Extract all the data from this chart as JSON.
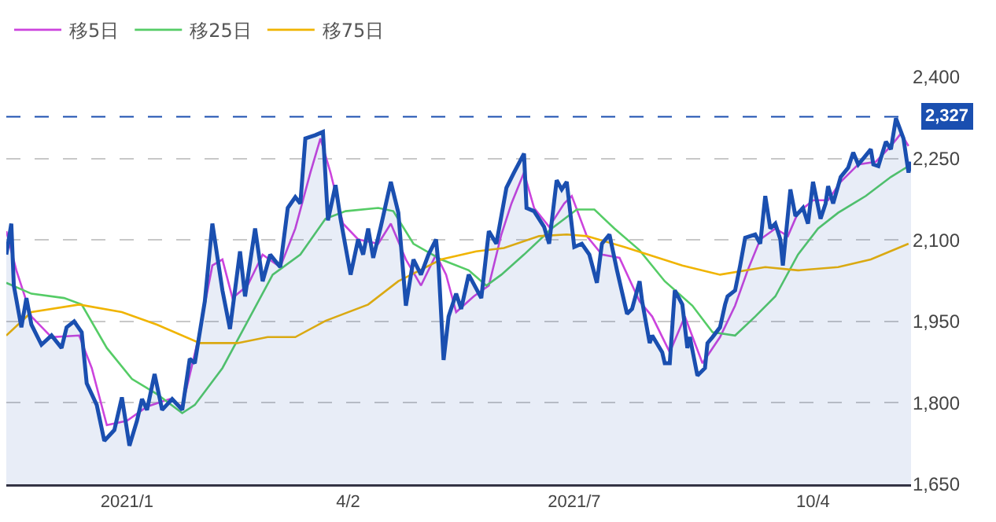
{
  "chart_data": {
    "type": "line",
    "x": [
      "2020-11-17",
      "2020-11-19",
      "2020-11-20",
      "2020-11-23",
      "2020-11-25",
      "2020-11-27",
      "2020-12-01",
      "2020-12-05",
      "2020-12-09",
      "2020-12-11",
      "2020-12-14",
      "2020-12-17",
      "2020-12-19",
      "2020-12-23",
      "2020-12-26",
      "2020-12-30",
      "2021-01-02",
      "2021-01-05",
      "2021-01-08",
      "2021-01-10",
      "2021-01-12",
      "2021-01-15",
      "2021-01-18",
      "2021-01-22",
      "2021-01-26",
      "2021-01-29",
      "2021-01-31",
      "2021-02-04",
      "2021-02-07",
      "2021-02-11",
      "2021-02-14",
      "2021-02-18",
      "2021-02-20",
      "2021-02-24",
      "2021-02-27",
      "2021-03-02",
      "2021-03-06",
      "2021-03-09",
      "2021-03-12",
      "2021-03-14",
      "2021-03-16",
      "2021-03-20",
      "2021-03-23",
      "2021-03-25",
      "2021-03-28",
      "2021-03-30",
      "2021-04-03",
      "2021-04-06",
      "2021-04-08",
      "2021-04-10",
      "2021-04-12",
      "2021-04-15",
      "2021-04-19",
      "2021-04-22",
      "2021-04-25",
      "2021-04-28",
      "2021-05-01",
      "2021-05-04",
      "2021-05-07",
      "2021-05-08",
      "2021-05-10",
      "2021-05-12",
      "2021-05-15",
      "2021-05-17",
      "2021-05-20",
      "2021-05-25",
      "2021-05-28",
      "2021-05-31",
      "2021-06-04",
      "2021-06-07",
      "2021-06-11",
      "2021-06-12",
      "2021-06-15",
      "2021-06-19",
      "2021-06-21",
      "2021-06-24",
      "2021-06-26",
      "2021-06-28",
      "2021-07-01",
      "2021-07-04",
      "2021-07-07",
      "2021-07-10",
      "2021-07-12",
      "2021-07-15",
      "2021-07-18",
      "2021-07-22",
      "2021-07-24",
      "2021-07-27",
      "2021-07-28",
      "2021-07-31",
      "2021-08-01",
      "2021-08-05",
      "2021-08-06",
      "2021-08-08",
      "2021-08-10",
      "2021-08-13",
      "2021-08-15",
      "2021-08-16",
      "2021-08-19",
      "2021-08-22",
      "2021-08-23",
      "2021-08-25",
      "2021-08-28",
      "2021-08-30",
      "2021-08-31",
      "2021-09-03",
      "2021-09-05",
      "2021-09-07",
      "2021-09-11",
      "2021-09-13",
      "2021-09-15",
      "2021-09-17",
      "2021-09-19",
      "2021-09-21",
      "2021-09-22",
      "2021-09-25",
      "2021-09-27",
      "2021-09-30",
      "2021-10-02",
      "2021-10-04",
      "2021-10-07",
      "2021-10-09",
      "2021-10-10",
      "2021-10-12",
      "2021-10-15",
      "2021-10-18",
      "2021-10-20",
      "2021-10-22",
      "2021-10-24",
      "2021-10-27",
      "2021-10-28",
      "2021-10-30",
      "2021-11-02",
      "2021-11-04",
      "2021-11-06",
      "2021-11-09",
      "2021-11-11",
      "2021-11-12"
    ],
    "series": [
      {
        "type": "area",
        "color": "#1a4fb0",
        "values": [
          2073,
          2130,
          2016,
          1939,
          1993,
          1944,
          1907,
          1924,
          1901,
          1939,
          1950,
          1930,
          1836,
          1796,
          1730,
          1750,
          1810,
          1721,
          1767,
          1807,
          1787,
          1853,
          1787,
          1807,
          1787,
          1881,
          1873,
          1987,
          2130,
          2007,
          1936,
          2079,
          1996,
          2121,
          2024,
          2073,
          2050,
          2159,
          2179,
          2167,
          2287,
          2293,
          2299,
          2136,
          2201,
          2139,
          2036,
          2101,
          2073,
          2121,
          2067,
          2124,
          2207,
          2150,
          1979,
          2064,
          2036,
          2073,
          2101,
          2053,
          1879,
          1959,
          2001,
          1973,
          2036,
          1993,
          2116,
          2093,
          2196,
          2224,
          2259,
          2159,
          2153,
          2124,
          2093,
          2210,
          2193,
          2207,
          2087,
          2093,
          2073,
          2021,
          2093,
          2110,
          2044,
          1964,
          1973,
          2024,
          1987,
          1910,
          1924,
          1893,
          1873,
          1873,
          2007,
          1981,
          1901,
          1921,
          1850,
          1864,
          1910,
          1921,
          1939,
          1981,
          1996,
          2007,
          2053,
          2104,
          2110,
          2093,
          2181,
          2121,
          2130,
          2101,
          2053,
          2193,
          2144,
          2159,
          2130,
          2207,
          2139,
          2167,
          2199,
          2167,
          2216,
          2233,
          2261,
          2239,
          2250,
          2267,
          2239,
          2236,
          2281,
          2267,
          2324,
          2287,
          2224,
          2244
        ]
      },
      {
        "name": "移5日",
        "color": "#cc44dd",
        "x": [
          "2020-11-17",
          "2020-11-21",
          "2020-11-27",
          "2020-12-05",
          "2020-12-16",
          "2020-12-21",
          "2020-12-27",
          "2021-01-04",
          "2021-01-12",
          "2021-01-21",
          "2021-01-26",
          "2021-02-01",
          "2021-02-07",
          "2021-02-11",
          "2021-02-15",
          "2021-02-21",
          "2021-02-27",
          "2021-03-06",
          "2021-03-12",
          "2021-03-18",
          "2021-03-22",
          "2021-03-26",
          "2021-03-31",
          "2021-04-06",
          "2021-04-14",
          "2021-04-19",
          "2021-04-25",
          "2021-05-01",
          "2021-05-07",
          "2021-05-11",
          "2021-05-15",
          "2021-05-22",
          "2021-05-28",
          "2021-06-02",
          "2021-06-06",
          "2021-06-11",
          "2021-06-15",
          "2021-06-21",
          "2021-06-27",
          "2021-06-30",
          "2021-07-06",
          "2021-07-12",
          "2021-07-19",
          "2021-07-27",
          "2021-08-01",
          "2021-08-08",
          "2021-08-14",
          "2021-08-21",
          "2021-08-28",
          "2021-09-03",
          "2021-09-08",
          "2021-09-13",
          "2021-09-19",
          "2021-09-24",
          "2021-09-28",
          "2021-10-04",
          "2021-10-10",
          "2021-10-15",
          "2021-10-22",
          "2021-10-29",
          "2021-11-04",
          "2021-11-08",
          "2021-11-11"
        ],
        "values": [
          2116,
          2044,
          1959,
          1921,
          1924,
          1864,
          1759,
          1767,
          1793,
          1807,
          1793,
          1910,
          2053,
          2064,
          1993,
          2016,
          2073,
          2050,
          2121,
          2224,
          2287,
          2224,
          2130,
          2101,
          2093,
          2130,
          2064,
          2016,
          2073,
          2036,
          1967,
          1996,
          2016,
          2110,
          2167,
          2224,
          2159,
          2124,
          2167,
          2181,
          2107,
          2073,
          2067,
          1987,
          1959,
          1893,
          1959,
          1873,
          1921,
          1979,
          2044,
          2101,
          2121,
          2107,
          2150,
          2173,
          2173,
          2207,
          2239,
          2244,
          2273,
          2296,
          2273
        ]
      },
      {
        "name": "移25日",
        "color": "#55cc66",
        "x": [
          "2020-11-17",
          "2020-11-27",
          "2020-12-10",
          "2020-12-17",
          "2020-12-27",
          "2021-01-06",
          "2021-01-16",
          "2021-01-26",
          "2021-01-31",
          "2021-02-11",
          "2021-02-21",
          "2021-03-03",
          "2021-03-14",
          "2021-03-24",
          "2021-04-01",
          "2021-04-14",
          "2021-04-20",
          "2021-04-28",
          "2021-05-09",
          "2021-05-20",
          "2021-05-27",
          "2021-06-02",
          "2021-06-11",
          "2021-06-22",
          "2021-07-02",
          "2021-07-09",
          "2021-07-17",
          "2021-07-27",
          "2021-08-06",
          "2021-08-17",
          "2021-08-25",
          "2021-09-03",
          "2021-09-11",
          "2021-09-19",
          "2021-09-28",
          "2021-10-06",
          "2021-10-14",
          "2021-10-25",
          "2021-11-04",
          "2021-11-11"
        ],
        "values": [
          2021,
          2001,
          1993,
          1981,
          1901,
          1844,
          1816,
          1781,
          1796,
          1864,
          1950,
          2036,
          2073,
          2139,
          2153,
          2159,
          2153,
          2093,
          2064,
          2044,
          2016,
          2036,
          2073,
          2121,
          2156,
          2156,
          2121,
          2081,
          2024,
          1979,
          1930,
          1924,
          1959,
          1996,
          2073,
          2121,
          2150,
          2181,
          2216,
          2236
        ]
      },
      {
        "name": "移75日",
        "color": "#f0b400",
        "x": [
          "2020-11-17",
          "2020-11-27",
          "2020-12-16",
          "2021-01-02",
          "2021-01-16",
          "2021-02-02",
          "2021-02-17",
          "2021-03-01",
          "2021-03-12",
          "2021-03-24",
          "2021-04-10",
          "2021-04-22",
          "2021-05-09",
          "2021-05-23",
          "2021-06-03",
          "2021-06-17",
          "2021-06-28",
          "2021-07-06",
          "2021-07-21",
          "2021-08-13",
          "2021-08-28",
          "2021-09-15",
          "2021-09-28",
          "2021-10-14",
          "2021-10-27",
          "2021-11-11"
        ],
        "values": [
          1924,
          1967,
          1981,
          1967,
          1944,
          1910,
          1910,
          1921,
          1921,
          1951,
          1981,
          2024,
          2064,
          2079,
          2085,
          2107,
          2110,
          2107,
          2087,
          2053,
          2036,
          2050,
          2044,
          2050,
          2064,
          2093
        ]
      }
    ],
    "xlim": [
      "2020-11-17",
      "2021-11-12"
    ],
    "xticks": [
      {
        "value": "2021-01-04",
        "label": "2021/1"
      },
      {
        "value": "2021-04-02",
        "label": "4/2"
      },
      {
        "value": "2021-07-01",
        "label": "2021/7"
      },
      {
        "value": "2021-10-04",
        "label": "10/4"
      }
    ],
    "ylim": [
      1650,
      2400
    ],
    "yticks": [
      {
        "value": 1650,
        "label": "1,650"
      },
      {
        "value": 1800,
        "label": "1,800"
      },
      {
        "value": 1950,
        "label": "1,950"
      },
      {
        "value": 2100,
        "label": "2,100"
      },
      {
        "value": 2250,
        "label": "2,250"
      },
      {
        "value": 2400,
        "label": "2,400"
      }
    ],
    "ref_lines": [
      {
        "axis": "y",
        "value": 2327,
        "label": "2,327",
        "color": "#1a4fb0",
        "line_style": "dashed"
      }
    ],
    "grid": "y",
    "legend": "top left",
    "line_style": "solid",
    "marker": "none"
  }
}
